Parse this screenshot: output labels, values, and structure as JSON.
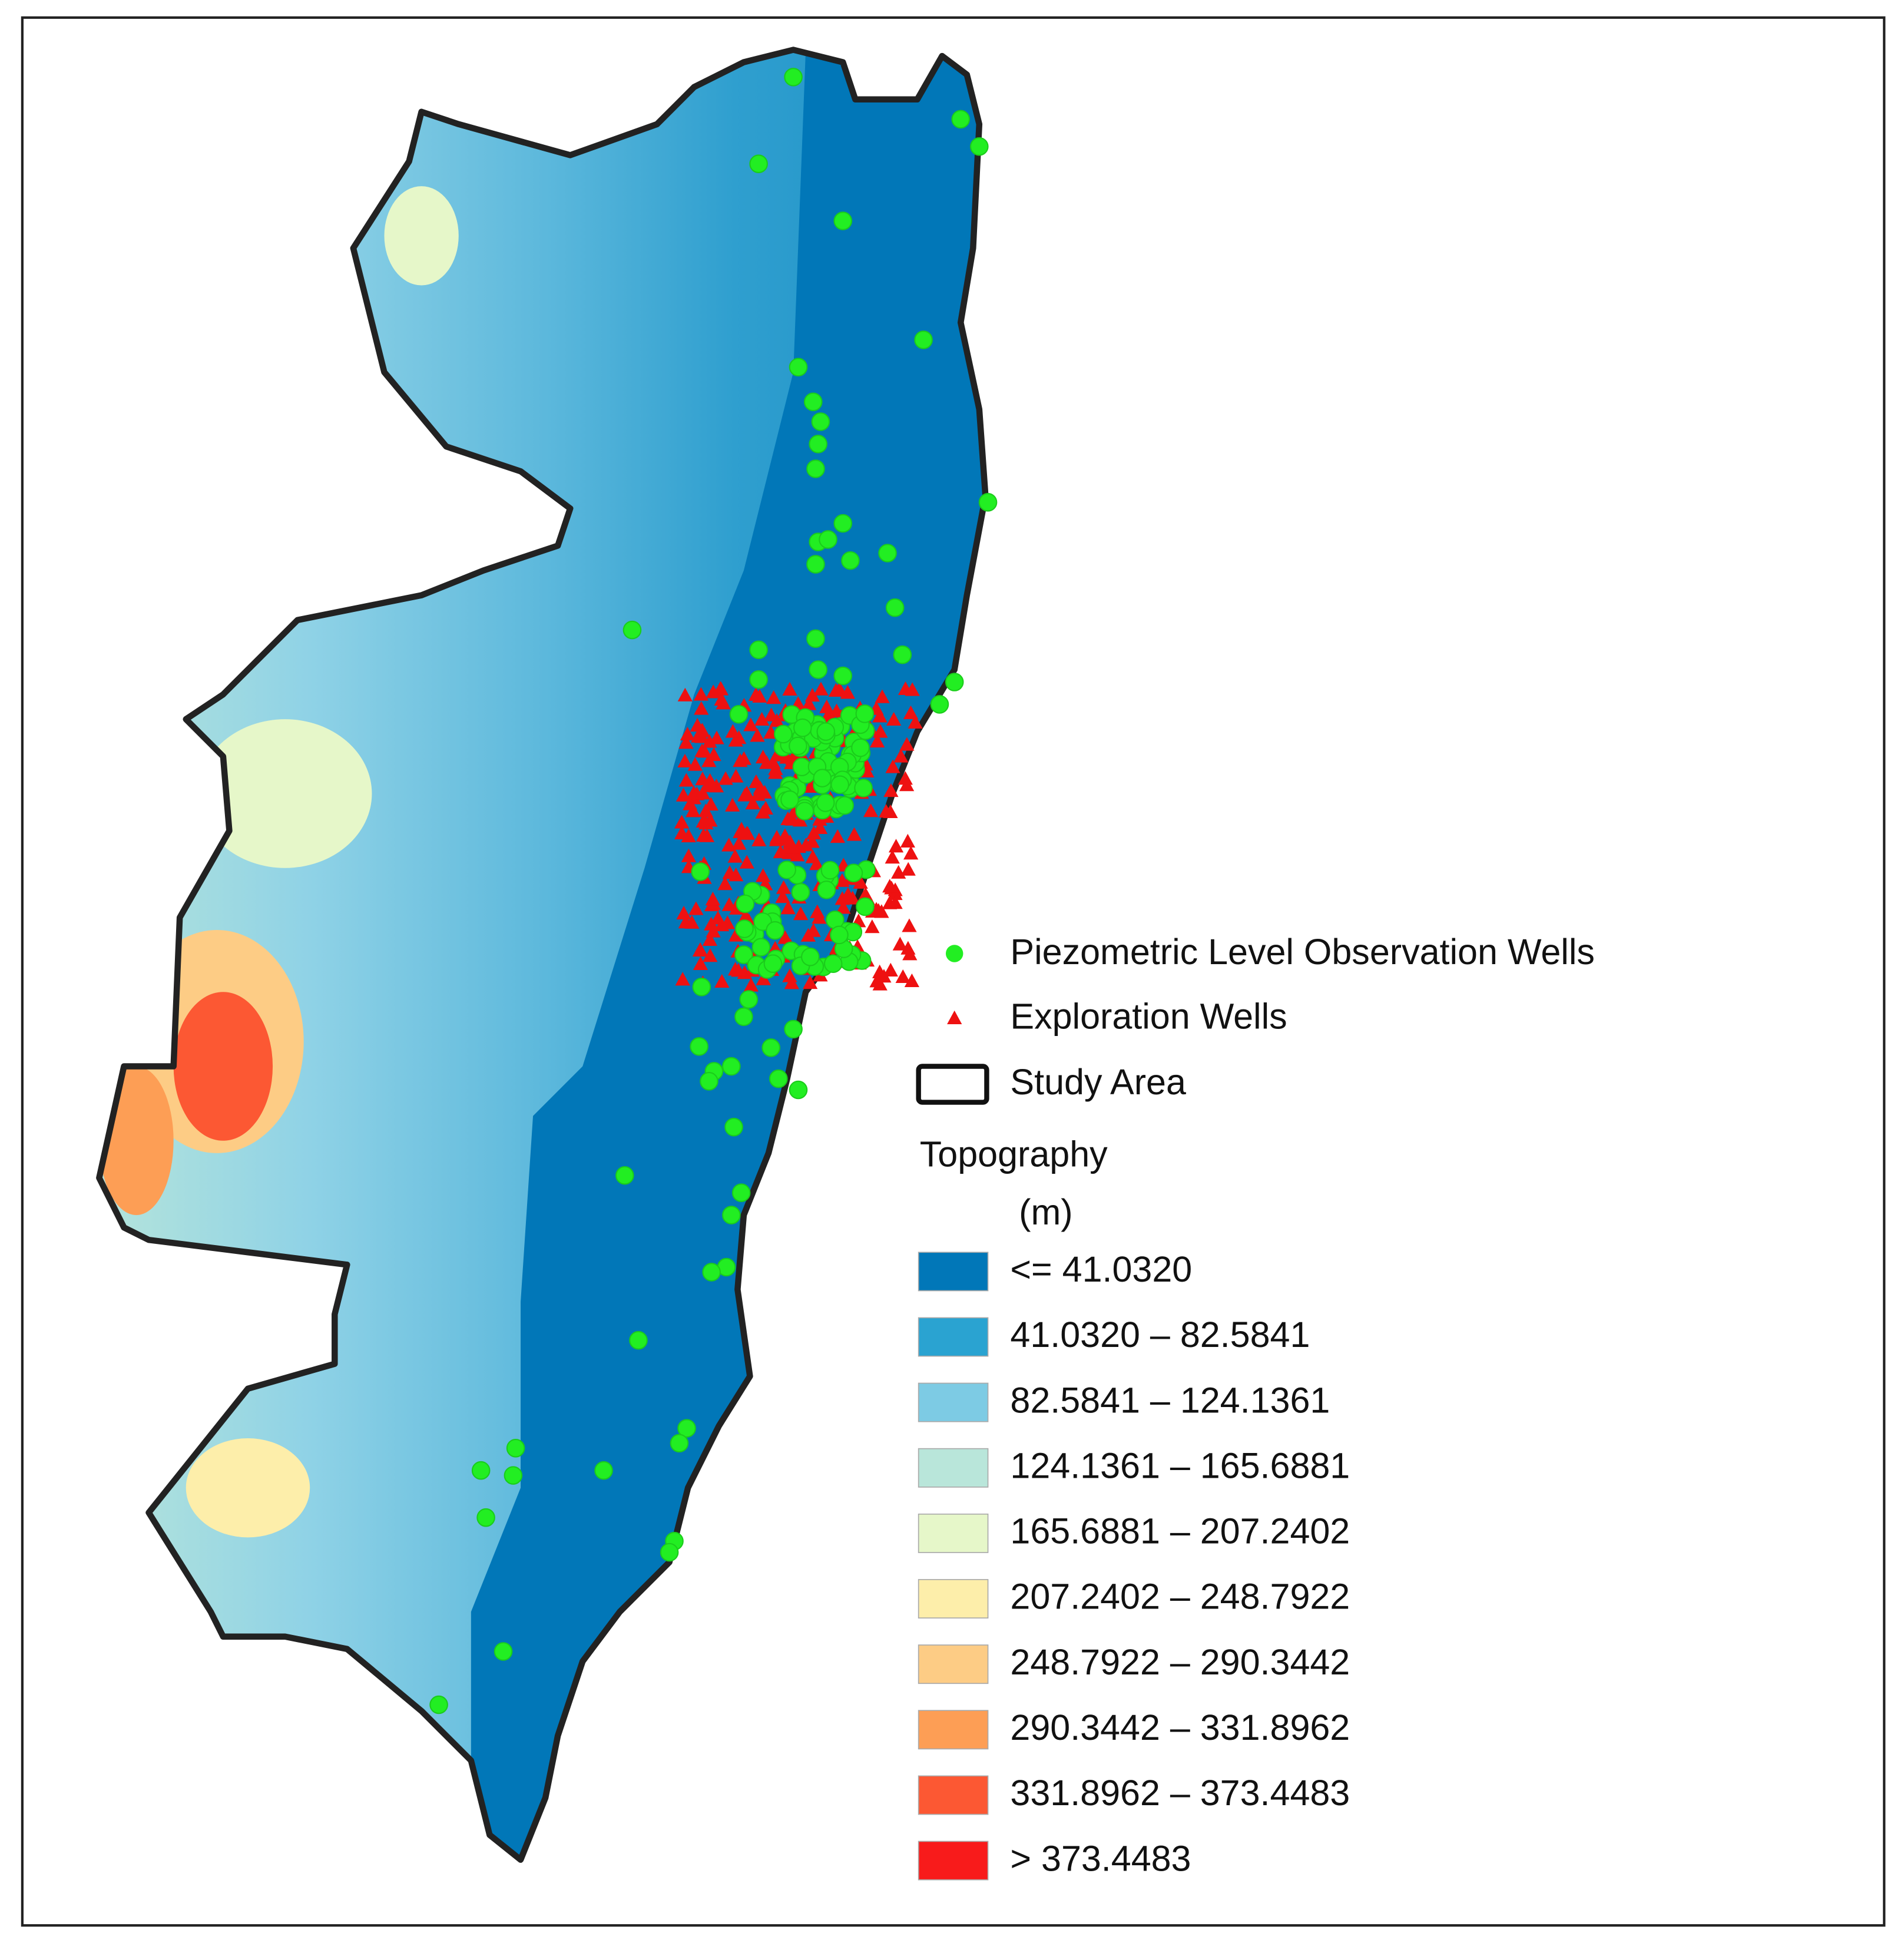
{
  "legend": {
    "wells": "Piezometric Level Observation Wells",
    "exploration": "Exploration Wells",
    "study_area": "Study Area",
    "topography_title": "Topography",
    "topography_unit": "(m)",
    "classes": [
      {
        "label": "<= 41.0320",
        "color": "#0177b8"
      },
      {
        "label": "41.0320 – 82.5841",
        "color": "#2aa3d1"
      },
      {
        "label": "82.5841 – 124.1361",
        "color": "#7dcbe4"
      },
      {
        "label": "124.1361 – 165.6881",
        "color": "#b9e6da"
      },
      {
        "label": "165.6881 – 207.2402",
        "color": "#e6f7c9"
      },
      {
        "label": "207.2402 – 248.7922",
        "color": "#fdeeaa"
      },
      {
        "label": "248.7922 – 290.3442",
        "color": "#fdcc85"
      },
      {
        "label": "290.3442 – 331.8962",
        "color": "#fd9e55"
      },
      {
        "label": "331.8962 – 373.4483",
        "color": "#fc5833"
      },
      {
        "label": "> 373.4483",
        "color": "#f81b1b"
      }
    ]
  }
}
